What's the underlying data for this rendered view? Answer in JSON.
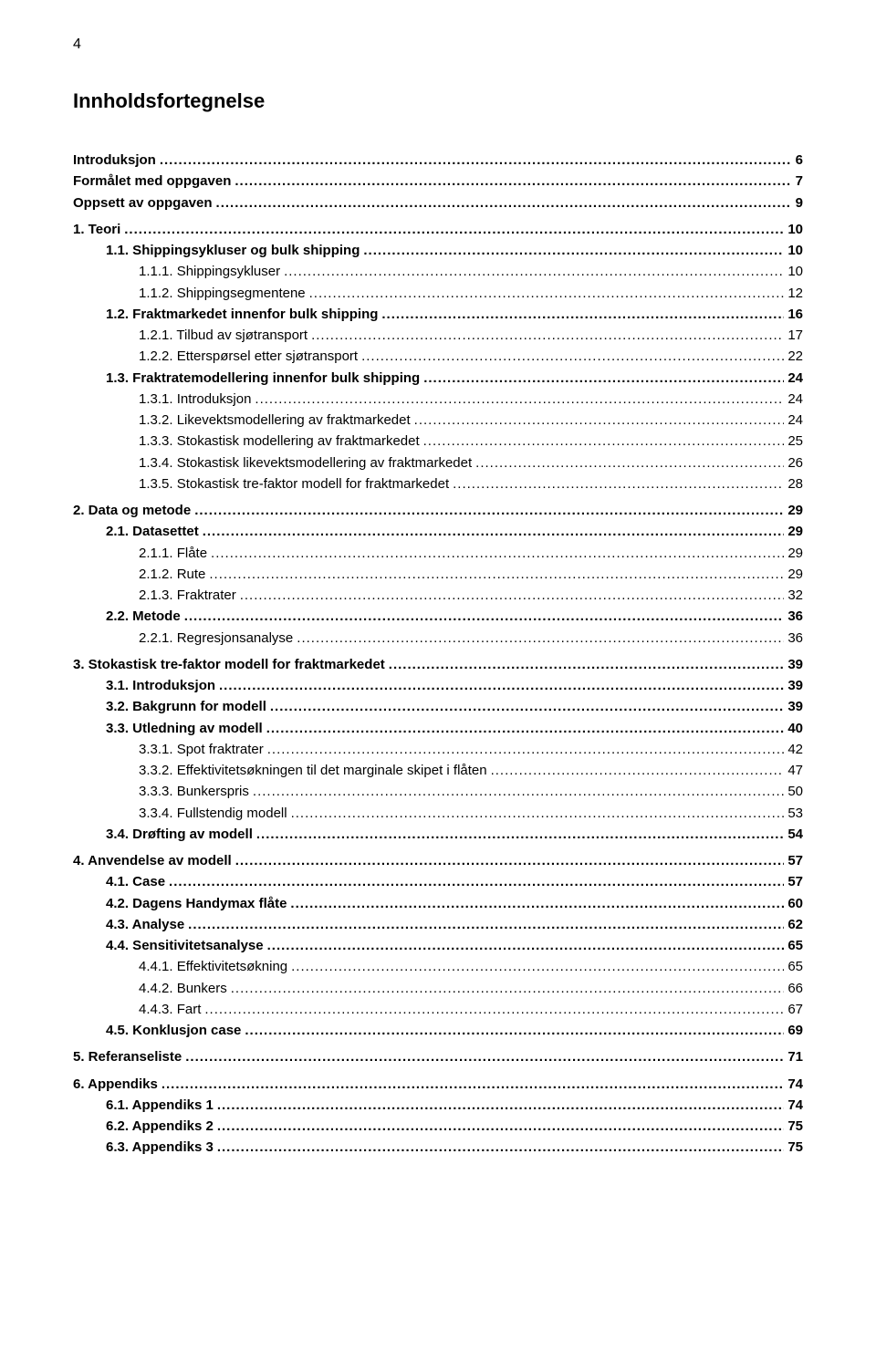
{
  "page_number": "4",
  "title": "Innholdsfortegnelse",
  "style": {
    "background_color": "#ffffff",
    "text_color": "#000000",
    "font_family": "Arial",
    "page_num_fontsize": 16,
    "title_fontsize": 22,
    "entry_fontsize": 15,
    "leader_char": "."
  },
  "entries": [
    {
      "level": 0,
      "label": "Introduksjon",
      "page": "6",
      "gap_before": true
    },
    {
      "level": 0,
      "label": "Formålet med oppgaven",
      "page": "7"
    },
    {
      "level": 0,
      "label": "Oppsett av oppgaven",
      "page": "9"
    },
    {
      "level": 0,
      "label": "1.   Teori",
      "page": "10",
      "gap_before": true
    },
    {
      "level": 1,
      "label": "1.1.   Shippingsykluser og bulk shipping",
      "page": "10"
    },
    {
      "level": 2,
      "label": "1.1.1.   Shippingsykluser",
      "page": "10"
    },
    {
      "level": 2,
      "label": "1.1.2.   Shippingsegmentene",
      "page": "12"
    },
    {
      "level": 1,
      "label": "1.2.   Fraktmarkedet innenfor bulk shipping",
      "page": "16"
    },
    {
      "level": 2,
      "label": "1.2.1.   Tilbud av sjøtransport",
      "page": "17"
    },
    {
      "level": 2,
      "label": "1.2.2.   Etterspørsel etter sjøtransport",
      "page": "22"
    },
    {
      "level": 1,
      "label": "1.3.   Fraktratemodellering innenfor bulk shipping",
      "page": "24"
    },
    {
      "level": 2,
      "label": "1.3.1.   Introduksjon",
      "page": "24"
    },
    {
      "level": 2,
      "label": "1.3.2.   Likevektsmodellering av fraktmarkedet",
      "page": "24"
    },
    {
      "level": 2,
      "label": "1.3.3.   Stokastisk modellering av fraktmarkedet",
      "page": "25"
    },
    {
      "level": 2,
      "label": "1.3.4.   Stokastisk likevektsmodellering av fraktmarkedet",
      "page": "26"
    },
    {
      "level": 2,
      "label": "1.3.5.   Stokastisk tre-faktor modell for fraktmarkedet",
      "page": "28"
    },
    {
      "level": 0,
      "label": "2.   Data og metode",
      "page": "29",
      "gap_before": true
    },
    {
      "level": 1,
      "label": "2.1.   Datasettet",
      "page": "29"
    },
    {
      "level": 2,
      "label": "2.1.1.   Flåte",
      "page": "29"
    },
    {
      "level": 2,
      "label": "2.1.2.   Rute",
      "page": "29"
    },
    {
      "level": 2,
      "label": "2.1.3.   Fraktrater",
      "page": "32"
    },
    {
      "level": 1,
      "label": "2.2.   Metode",
      "page": "36"
    },
    {
      "level": 2,
      "label": "2.2.1.   Regresjonsanalyse",
      "page": "36"
    },
    {
      "level": 0,
      "label": "3.   Stokastisk tre-faktor modell for fraktmarkedet",
      "page": "39",
      "gap_before": true
    },
    {
      "level": 1,
      "label": "3.1.   Introduksjon",
      "page": "39"
    },
    {
      "level": 1,
      "label": "3.2.   Bakgrunn for modell",
      "page": "39"
    },
    {
      "level": 1,
      "label": "3.3.   Utledning av modell",
      "page": "40"
    },
    {
      "level": 2,
      "label": "3.3.1.   Spot fraktrater",
      "page": "42"
    },
    {
      "level": 2,
      "label": "3.3.2.   Effektivitetsøkningen til det marginale skipet i flåten",
      "page": "47"
    },
    {
      "level": 2,
      "label": "3.3.3.   Bunkerspris",
      "page": "50"
    },
    {
      "level": 2,
      "label": "3.3.4.   Fullstendig modell",
      "page": "53"
    },
    {
      "level": 1,
      "label": "3.4.   Drøfting av modell",
      "page": "54"
    },
    {
      "level": 0,
      "label": "4.   Anvendelse av modell",
      "page": "57",
      "gap_before": true
    },
    {
      "level": 1,
      "label": "4.1.   Case",
      "page": "57"
    },
    {
      "level": 1,
      "label": "4.2.   Dagens Handymax flåte",
      "page": "60"
    },
    {
      "level": 1,
      "label": "4.3.   Analyse",
      "page": "62"
    },
    {
      "level": 1,
      "label": "4.4.   Sensitivitetsanalyse",
      "page": "65"
    },
    {
      "level": 2,
      "label": "4.4.1.   Effektivitetsøkning",
      "page": "65"
    },
    {
      "level": 2,
      "label": "4.4.2.   Bunkers",
      "page": "66"
    },
    {
      "level": 2,
      "label": "4.4.3.   Fart",
      "page": "67"
    },
    {
      "level": 1,
      "label": "4.5.   Konklusjon case",
      "page": "69"
    },
    {
      "level": 0,
      "label": "5.   Referanseliste",
      "page": "71",
      "gap_before": true
    },
    {
      "level": 0,
      "label": "6.   Appendiks",
      "page": "74",
      "gap_before": true
    },
    {
      "level": 1,
      "label": "6.1.   Appendiks 1",
      "page": "74"
    },
    {
      "level": 1,
      "label": "6.2.   Appendiks 2",
      "page": "75"
    },
    {
      "level": 1,
      "label": "6.3.   Appendiks 3",
      "page": "75"
    }
  ]
}
